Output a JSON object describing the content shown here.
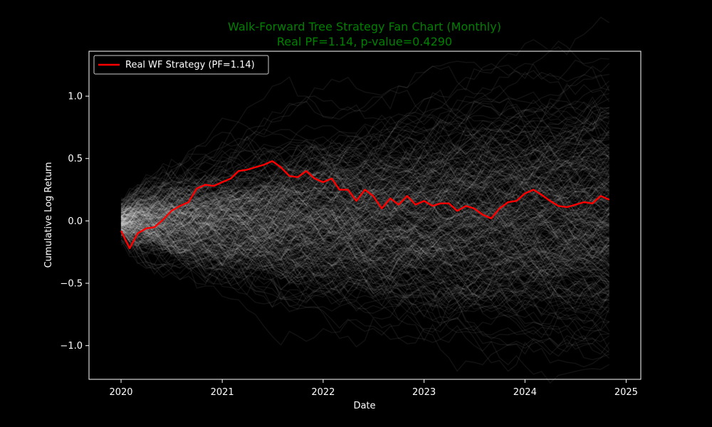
{
  "colors": {
    "background": "#000000",
    "axes_face": "#000000",
    "axes_edge": "#ffffff",
    "title": "#008000",
    "text": "#ffffff",
    "real_line": "#ff0000",
    "permutation_lines": "#ffffff"
  },
  "chart_data": {
    "type": "line",
    "title": "Walk-Forward Tree Strategy Fan Chart (Monthly)",
    "subtitle": "Real PF=1.14, p-value=0.4290",
    "xlabel": "Date",
    "ylabel": "Cumulative Log Return",
    "xlim": [
      "2019-09-07",
      "2025-02-23"
    ],
    "ylim": [
      -1.27,
      1.36
    ],
    "x_ticks": [
      "2020",
      "2021",
      "2022",
      "2023",
      "2024",
      "2025"
    ],
    "x_tick_dates": [
      "2020-01-01",
      "2021-01-01",
      "2022-01-01",
      "2023-01-01",
      "2024-01-01",
      "2025-01-01"
    ],
    "y_ticks": [
      -1.0,
      -0.5,
      0.0,
      0.5,
      1.0
    ],
    "y_tick_labels": [
      "−1.0",
      "−0.5",
      "0.0",
      "0.5",
      "1.0"
    ],
    "grid": false,
    "legend": {
      "position": "top-left",
      "entries": [
        "Real WF Strategy (PF=1.14)"
      ]
    },
    "real_series": {
      "name": "Real WF Strategy (PF=1.14)",
      "x": [
        "2020-01-01",
        "2020-02-01",
        "2020-03-01",
        "2020-04-01",
        "2020-05-01",
        "2020-06-01",
        "2020-07-01",
        "2020-08-01",
        "2020-09-01",
        "2020-10-01",
        "2020-11-01",
        "2020-12-01",
        "2021-01-01",
        "2021-02-01",
        "2021-03-01",
        "2021-04-01",
        "2021-05-01",
        "2021-06-01",
        "2021-07-01",
        "2021-08-01",
        "2021-09-01",
        "2021-10-01",
        "2021-11-01",
        "2021-12-01",
        "2022-01-01",
        "2022-02-01",
        "2022-03-01",
        "2022-04-01",
        "2022-05-01",
        "2022-06-01",
        "2022-07-01",
        "2022-08-01",
        "2022-09-01",
        "2022-10-01",
        "2022-11-01",
        "2022-12-01",
        "2023-01-01",
        "2023-02-01",
        "2023-03-01",
        "2023-04-01",
        "2023-05-01",
        "2023-06-01",
        "2023-07-01",
        "2023-08-01",
        "2023-09-01",
        "2023-10-01",
        "2023-11-01",
        "2023-12-01",
        "2024-01-01",
        "2024-02-01",
        "2024-03-01",
        "2024-04-01",
        "2024-05-01",
        "2024-06-01",
        "2024-07-01",
        "2024-08-01",
        "2024-09-01",
        "2024-10-01",
        "2024-11-01"
      ],
      "y": [
        -0.08,
        -0.22,
        -0.1,
        -0.06,
        -0.05,
        0.01,
        0.08,
        0.12,
        0.15,
        0.26,
        0.29,
        0.28,
        0.31,
        0.34,
        0.4,
        0.41,
        0.43,
        0.45,
        0.48,
        0.43,
        0.36,
        0.35,
        0.4,
        0.34,
        0.31,
        0.34,
        0.25,
        0.25,
        0.16,
        0.25,
        0.2,
        0.1,
        0.18,
        0.13,
        0.2,
        0.13,
        0.16,
        0.12,
        0.14,
        0.14,
        0.08,
        0.12,
        0.1,
        0.05,
        0.02,
        0.1,
        0.15,
        0.16,
        0.22,
        0.25,
        0.21,
        0.16,
        0.12,
        0.11,
        0.13,
        0.15,
        0.14,
        0.2,
        0.17
      ]
    },
    "permutations": {
      "count": 300,
      "x_start": "2020-01-01",
      "x_end": "2024-11-01",
      "monthly_volatility": 0.065
    }
  }
}
